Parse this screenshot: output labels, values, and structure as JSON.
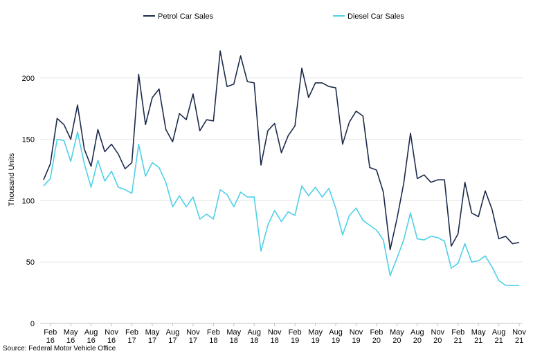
{
  "chart_data": {
    "type": "line",
    "ylabel": "Thousand Units",
    "ylim": [
      0,
      250
    ],
    "yticks": [
      0,
      50,
      100,
      150,
      200
    ],
    "x_tick_labels": [
      [
        "Feb",
        "16"
      ],
      [
        "May",
        "16"
      ],
      [
        "Aug",
        "16"
      ],
      [
        "Nov",
        "16"
      ],
      [
        "Feb",
        "17"
      ],
      [
        "May",
        "17"
      ],
      [
        "Aug",
        "17"
      ],
      [
        "Nov",
        "17"
      ],
      [
        "Feb",
        "18"
      ],
      [
        "May",
        "18"
      ],
      [
        "Aug",
        "18"
      ],
      [
        "Nov",
        "18"
      ],
      [
        "Feb",
        "19"
      ],
      [
        "May",
        "19"
      ],
      [
        "Aug",
        "19"
      ],
      [
        "Nov",
        "19"
      ],
      [
        "Feb",
        "20"
      ],
      [
        "May",
        "20"
      ],
      [
        "Aug",
        "20"
      ],
      [
        "Nov",
        "20"
      ],
      [
        "Feb",
        "21"
      ],
      [
        "May",
        "21"
      ],
      [
        "Aug",
        "21"
      ],
      [
        "Nov",
        "21"
      ]
    ],
    "x_start": "2016-01",
    "x_end": "2021-12",
    "legend_position": "top",
    "grid": {
      "horizontal": true,
      "vertical": false
    },
    "series": [
      {
        "name": "Petrol Car Sales",
        "color": "#1b2a4a",
        "values": [
          117,
          130,
          167,
          162,
          150,
          178,
          142,
          128,
          158,
          140,
          146,
          138,
          126,
          131,
          203,
          162,
          184,
          191,
          158,
          148,
          171,
          166,
          187,
          157,
          166,
          165,
          222,
          193,
          195,
          218,
          197,
          196,
          129,
          157,
          163,
          139,
          153,
          161,
          208,
          184,
          196,
          196,
          193,
          192,
          146,
          164,
          173,
          169,
          127,
          125,
          107,
          60,
          85,
          114,
          155,
          118,
          121,
          115,
          117,
          117,
          63,
          73,
          115,
          90,
          87,
          108,
          93,
          69,
          71,
          65,
          66
        ]
      },
      {
        "name": "Diesel Car Sales",
        "color": "#4dd0e7",
        "values": [
          112,
          118,
          150,
          149,
          132,
          156,
          130,
          111,
          133,
          116,
          124,
          111,
          109,
          106,
          146,
          120,
          131,
          127,
          115,
          95,
          104,
          95,
          103,
          85,
          89,
          85,
          109,
          105,
          95,
          107,
          103,
          103,
          59,
          80,
          92,
          83,
          91,
          88,
          112,
          104,
          111,
          103,
          110,
          94,
          72,
          88,
          94,
          84,
          80,
          76,
          68,
          39,
          53,
          68,
          90,
          69,
          68,
          71,
          70,
          67,
          45,
          49,
          65,
          50,
          51,
          55,
          46,
          35,
          31,
          31,
          31
        ]
      }
    ]
  },
  "source_text": "Source: Federal Motor Vehicle Office"
}
